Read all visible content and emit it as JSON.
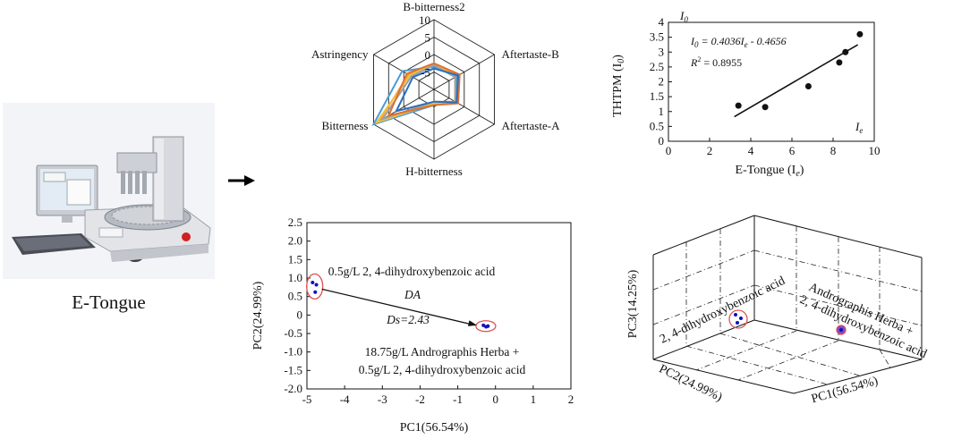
{
  "device": {
    "caption": "E-Tongue",
    "monitor_label": "",
    "brand_label": "",
    "colors": {
      "body": "#e8e9ec",
      "tower": "#cfd2d8",
      "screen": "#dfe8f4",
      "background": "#f4f6fa"
    }
  },
  "flow_arrow": {
    "icon": "right-arrow-icon",
    "color": "#000000"
  },
  "chart_data": [
    {
      "id": "radar",
      "type": "radar",
      "axes": [
        "B-bitterness2",
        "Aftertaste-B",
        "Aftertaste-A",
        "H-bitterness",
        "Bitterness",
        "Astringency"
      ],
      "r_ticks": [
        "10",
        "5",
        "0",
        "-5"
      ],
      "rlim": [
        -10,
        10
      ],
      "grid": true,
      "series": [
        {
          "color": "#f0a030",
          "values": [
            -3.0,
            -2.0,
            -2.5,
            -6.0,
            8.0,
            -1.5
          ]
        },
        {
          "color": "#4d9bd4",
          "values": [
            -3.5,
            -2.5,
            -2.5,
            -5.5,
            10.0,
            0.5
          ]
        },
        {
          "color": "#f0c040",
          "values": [
            -2.5,
            -3.0,
            -3.0,
            -6.0,
            9.0,
            -2.0
          ]
        },
        {
          "color": "#a0a0a0",
          "values": [
            -3.0,
            -3.0,
            -3.0,
            -6.5,
            7.0,
            -2.5
          ]
        },
        {
          "color": "#e07030",
          "values": [
            -2.5,
            -1.5,
            -2.0,
            -5.5,
            5.0,
            -1.0
          ]
        },
        {
          "color": "#2a6fbf",
          "values": [
            -4.0,
            -2.0,
            -2.5,
            -6.5,
            2.5,
            -3.0
          ]
        }
      ]
    },
    {
      "id": "regression",
      "type": "scatter",
      "xlabel": "E-Tongue (I",
      "xlabel_sub": "e",
      "xlabel_close": ")",
      "ylabel": "THTPM  (I",
      "ylabel_sub": "0",
      "ylabel_close": ")",
      "y_corner_label": "I",
      "y_corner_sub": "0",
      "x_corner_label": "I",
      "x_corner_sub": "e",
      "equation": "I",
      "equation_sub": "0",
      "equation_rest": " = 0.4036I",
      "equation_sub2": "e",
      "equation_tail": " - 0.4656",
      "r2_label": "R",
      "r2_sup": "2",
      "r2_value": " = 0.8955",
      "xlim": [
        0,
        10
      ],
      "ylim": [
        0,
        4
      ],
      "xticks": [
        "0",
        "2",
        "4",
        "6",
        "8",
        "10"
      ],
      "yticks": [
        "0",
        "0.5",
        "1",
        "1.5",
        "2",
        "2.5",
        "3",
        "3.5",
        "4"
      ],
      "x": [
        3.4,
        4.7,
        6.8,
        8.3,
        8.6,
        9.3
      ],
      "y": [
        1.2,
        1.15,
        1.85,
        2.65,
        3.0,
        3.6
      ],
      "fit": {
        "slope": 0.4036,
        "intercept": -0.4656,
        "x_range": [
          3.2,
          9.2
        ]
      }
    },
    {
      "id": "pca2d",
      "type": "scatter",
      "xlabel": "PC1(56.54%)",
      "ylabel": "PC2(24.99%)",
      "xlim": [
        -5,
        2
      ],
      "ylim": [
        -2.0,
        2.5
      ],
      "xticks": [
        "-5",
        "-4",
        "-3",
        "-2",
        "-1",
        "0",
        "1",
        "2"
      ],
      "yticks": [
        "2.5",
        "2.0",
        "1.5",
        "1.0",
        "0.5",
        "0",
        "-0.5",
        "-1.0",
        "-1.5",
        "-2.0"
      ],
      "groups": [
        {
          "label": "0.5g/L 2, 4-dihydroxybenzoic acid",
          "points": [
            [
              -4.85,
              0.88
            ],
            [
              -4.75,
              0.82
            ],
            [
              -4.78,
              0.62
            ]
          ]
        },
        {
          "label_line1": "18.75g/L Andrographis Herba +",
          "label_line2": "0.5g/L 2, 4-dihydroxybenzoic acid",
          "points": [
            [
              -0.32,
              -0.28
            ],
            [
              -0.25,
              -0.32
            ],
            [
              -0.2,
              -0.3
            ]
          ]
        }
      ],
      "da_label": "DA",
      "ds_label": "Ds=2.43",
      "point_color": "#1010c0",
      "ellipse_color": "#e05050"
    },
    {
      "id": "pca3d",
      "type": "scatter",
      "xlabel": "PC1(56.54%)",
      "ylabel": "PC2(24.99%)",
      "zlabel": "PC3(14.25%)",
      "group_labels": [
        "2, 4-dihydroxybenzoic acid",
        "Andrographis Herba +",
        "2, 4-dihydroxybenzoic acid"
      ],
      "point_color": "#1010c0",
      "ellipse_color": "#e05050"
    }
  ]
}
